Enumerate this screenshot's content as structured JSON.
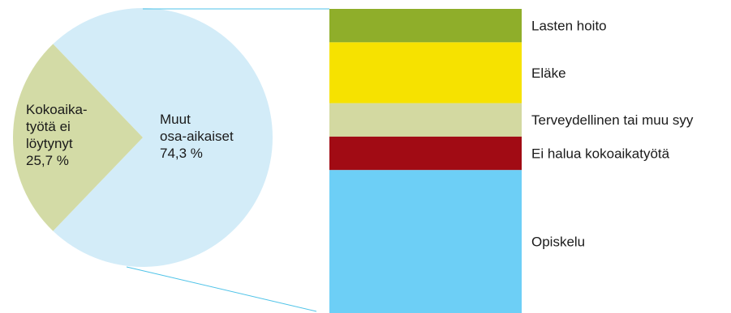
{
  "chart_data": [
    {
      "type": "pie",
      "title": "",
      "slices": [
        {
          "label_lines": [
            "Muut",
            "osa-aikaiset"
          ],
          "value": 74.3,
          "value_label": "74,3 %",
          "color": "#d3ecf8"
        },
        {
          "label_lines": [
            "Kokoaika-",
            "työtä ei",
            "löytynyt"
          ],
          "value": 25.7,
          "value_label": "25,7 %",
          "color": "#d3dba6"
        }
      ]
    },
    {
      "type": "bar",
      "subtype": "stacked-100",
      "breakdown_of": "Muut osa-aikaiset",
      "segments_top_to_bottom": [
        {
          "label": "Lasten hoito",
          "share": 0.11,
          "color": "#8fae2a"
        },
        {
          "label": "Eläke",
          "share": 0.2,
          "color": "#f6e200"
        },
        {
          "label": "Terveydellinen tai muu syy",
          "share": 0.11,
          "color": "#d3d9a1"
        },
        {
          "label": "Ei halua kokoaikatyötä",
          "share": 0.11,
          "color": "#a10b14"
        },
        {
          "label": "Opiskelu",
          "share": 0.47,
          "color": "#6dcff6"
        }
      ]
    }
  ],
  "colors": {
    "connector_line": "#4fc3e8"
  }
}
